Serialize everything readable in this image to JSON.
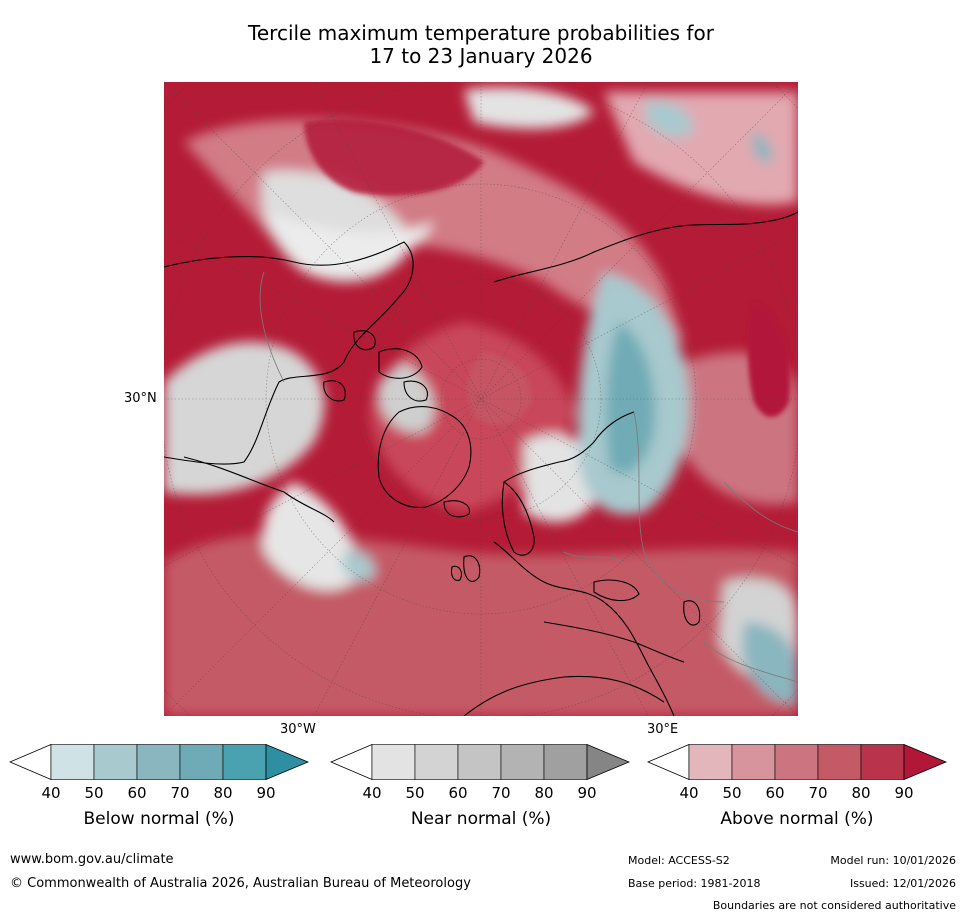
{
  "title": {
    "line1": "Tercile maximum temperature probabilities for",
    "line2": "17 to 23 January 2026"
  },
  "axis_labels": {
    "lat": "30°N",
    "lon_west": "30°W",
    "lon_east": "30°E"
  },
  "legends": [
    {
      "title": "Below normal (%)",
      "ticks": [
        "40",
        "50",
        "60",
        "70",
        "80",
        "90"
      ],
      "colors": [
        "#ffffff",
        "#cfe3e6",
        "#a8c9ce",
        "#8ab6c0",
        "#6fabb6",
        "#4aa1b0",
        "#2e8fa3"
      ]
    },
    {
      "title": "Near normal (%)",
      "ticks": [
        "40",
        "50",
        "60",
        "70",
        "80",
        "90"
      ],
      "colors": [
        "#ffffff",
        "#e3e3e3",
        "#d3d3d3",
        "#c4c4c4",
        "#b3b3b3",
        "#a0a0a0",
        "#858585"
      ]
    },
    {
      "title": "Above normal (%)",
      "ticks": [
        "40",
        "50",
        "60",
        "70",
        "80",
        "90"
      ],
      "colors": [
        "#ffffff",
        "#e3b6bb",
        "#d8949c",
        "#cc7581",
        "#c45a66",
        "#b9344a",
        "#b2173a"
      ]
    }
  ],
  "footer": {
    "website": "www.bom.gov.au/climate",
    "copyright": "© Commonwealth of Australia 2026, Australian Bureau of Meteorology",
    "model": "Model: ACCESS-S2",
    "model_run": "Model run: 10/01/2026",
    "base_period": "Base period: 1981-2018",
    "issued": "Issued: 12/01/2026",
    "disclaimer": "Boundaries are not considered authoritative"
  }
}
